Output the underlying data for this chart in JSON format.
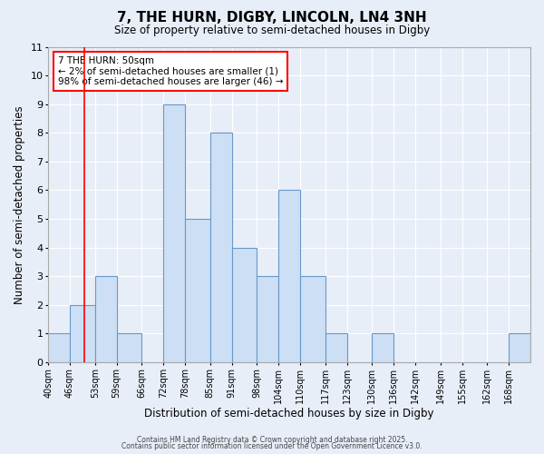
{
  "title": "7, THE HURN, DIGBY, LINCOLN, LN4 3NH",
  "subtitle": "Size of property relative to semi-detached houses in Digby",
  "xlabel": "Distribution of semi-detached houses by size in Digby",
  "ylabel": "Number of semi-detached properties",
  "bin_edges": [
    40,
    46,
    53,
    59,
    66,
    72,
    78,
    85,
    91,
    98,
    104,
    110,
    117,
    123,
    130,
    136,
    142,
    149,
    155,
    162,
    168,
    174
  ],
  "bar_heights": [
    1,
    2,
    3,
    1,
    0,
    9,
    5,
    8,
    4,
    3,
    6,
    3,
    1,
    0,
    1,
    0,
    0,
    0,
    0,
    0,
    1
  ],
  "bar_color": "#ccdff5",
  "bar_edge_color": "#6699cc",
  "background_color": "#e8eef8",
  "plot_bg_color": "#e8eef8",
  "grid_color": "#ffffff",
  "red_line_x": 50,
  "annotation_title": "7 THE HURN: 50sqm",
  "annotation_line1": "← 2% of semi-detached houses are smaller (1)",
  "annotation_line2": "98% of semi-detached houses are larger (46) →",
  "ylim": [
    0,
    11
  ],
  "yticks": [
    0,
    1,
    2,
    3,
    4,
    5,
    6,
    7,
    8,
    9,
    10,
    11
  ],
  "footer1": "Contains HM Land Registry data © Crown copyright and database right 2025.",
  "footer2": "Contains public sector information licensed under the Open Government Licence v3.0.",
  "x_tick_labels": [
    "40sqm",
    "46sqm",
    "53sqm",
    "59sqm",
    "66sqm",
    "72sqm",
    "78sqm",
    "85sqm",
    "91sqm",
    "98sqm",
    "104sqm",
    "110sqm",
    "117sqm",
    "123sqm",
    "130sqm",
    "136sqm",
    "142sqm",
    "149sqm",
    "155sqm",
    "162sqm",
    "168sqm"
  ]
}
